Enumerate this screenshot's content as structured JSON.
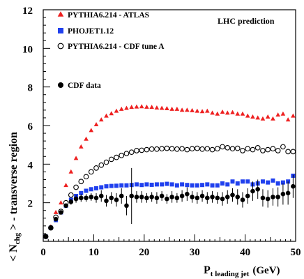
{
  "chart_data": {
    "type": "scatter",
    "title": "",
    "annotation": "LHC prediction",
    "xlabel": {
      "main": "P",
      "sub": "t leading jet",
      "unit": "(GeV)"
    },
    "ylabel": {
      "lead": "< N",
      "sub": "chg",
      "trail": " > - transverse region"
    },
    "xlim": [
      0,
      50
    ],
    "ylim": [
      0,
      12
    ],
    "xticks": [
      "0",
      "10",
      "20",
      "30",
      "40",
      "50"
    ],
    "yticks": [
      "2",
      "4",
      "6",
      "8",
      "10",
      "12"
    ],
    "grid": false,
    "legend_position": "top-left",
    "series": [
      {
        "name": "PYTHIA6.214 - ATLAS",
        "marker": "triangle",
        "color": "#ee2020",
        "x": [
          0.5,
          1.5,
          2.5,
          3.5,
          4.5,
          5.5,
          6.5,
          7.5,
          8.5,
          9.5,
          10.5,
          11.5,
          12.5,
          13.5,
          14.5,
          15.5,
          16.5,
          17.5,
          18.5,
          19.5,
          20.5,
          21.5,
          22.5,
          23.5,
          24.5,
          25.5,
          26.5,
          27.5,
          28.5,
          29.5,
          30.5,
          31.5,
          32.5,
          33.5,
          34.5,
          35.5,
          36.5,
          37.5,
          38.5,
          39.5,
          40.5,
          41.5,
          42.5,
          43.5,
          44.5,
          45.5,
          46.5,
          47.5,
          48.5,
          49.5
        ],
        "y": [
          0.25,
          0.75,
          1.5,
          2.0,
          2.9,
          3.6,
          4.3,
          4.9,
          5.3,
          5.75,
          6.05,
          6.3,
          6.5,
          6.62,
          6.75,
          6.85,
          6.9,
          6.95,
          6.97,
          6.98,
          6.96,
          6.95,
          6.92,
          6.9,
          6.88,
          6.85,
          6.85,
          6.8,
          6.8,
          6.78,
          6.75,
          6.73,
          6.75,
          6.65,
          6.6,
          6.7,
          6.65,
          6.68,
          6.6,
          6.6,
          6.5,
          6.45,
          6.4,
          6.35,
          6.45,
          6.35,
          6.55,
          6.6,
          6.3,
          6.5
        ]
      },
      {
        "name": "PHOJET1.12",
        "marker": "square",
        "color": "#2040ee",
        "x": [
          0.5,
          1.5,
          2.5,
          3.5,
          4.5,
          5.5,
          6.5,
          7.5,
          8.5,
          9.5,
          10.5,
          11.5,
          12.5,
          13.5,
          14.5,
          15.5,
          16.5,
          17.5,
          18.5,
          19.5,
          20.5,
          21.5,
          22.5,
          23.5,
          24.5,
          25.5,
          26.5,
          27.5,
          28.5,
          29.5,
          30.5,
          31.5,
          32.5,
          33.5,
          34.5,
          35.5,
          36.5,
          37.5,
          38.5,
          39.5,
          40.5,
          41.5,
          42.5,
          43.5,
          44.5,
          45.5,
          46.5,
          47.5,
          48.5,
          49.5
        ],
        "y": [
          0.25,
          0.7,
          1.1,
          1.5,
          1.85,
          2.15,
          2.35,
          2.5,
          2.62,
          2.7,
          2.75,
          2.8,
          2.85,
          2.87,
          2.88,
          2.9,
          2.9,
          2.92,
          2.95,
          2.92,
          2.95,
          2.93,
          2.95,
          2.95,
          2.98,
          2.95,
          2.9,
          2.95,
          2.92,
          2.9,
          2.9,
          2.92,
          2.95,
          2.9,
          2.9,
          3.0,
          2.95,
          3.1,
          3.0,
          3.1,
          3.1,
          2.95,
          3.0,
          3.1,
          3.05,
          3.15,
          3.0,
          3.05,
          3.1,
          3.4
        ]
      },
      {
        "name": "PYTHIA6.214 - CDF tune A",
        "marker": "circle-open",
        "color": "#000000",
        "x": [
          0.5,
          1.5,
          2.5,
          3.5,
          4.5,
          5.5,
          6.5,
          7.5,
          8.5,
          9.5,
          10.5,
          11.5,
          12.5,
          13.5,
          14.5,
          15.5,
          16.5,
          17.5,
          18.5,
          19.5,
          20.5,
          21.5,
          22.5,
          23.5,
          24.5,
          25.5,
          26.5,
          27.5,
          28.5,
          29.5,
          30.5,
          31.5,
          32.5,
          33.5,
          34.5,
          35.5,
          36.5,
          37.5,
          38.5,
          39.5,
          40.5,
          41.5,
          42.5,
          43.5,
          44.5,
          45.5,
          46.5,
          47.5,
          48.5,
          49.5
        ],
        "y": [
          0.25,
          0.7,
          1.25,
          1.55,
          2.0,
          2.4,
          2.8,
          3.1,
          3.35,
          3.6,
          3.8,
          3.95,
          4.1,
          4.25,
          4.35,
          4.45,
          4.55,
          4.62,
          4.7,
          4.72,
          4.75,
          4.78,
          4.78,
          4.8,
          4.82,
          4.8,
          4.78,
          4.8,
          4.75,
          4.8,
          4.82,
          4.78,
          4.8,
          4.75,
          4.8,
          4.9,
          4.85,
          4.8,
          4.82,
          4.7,
          4.8,
          4.75,
          4.85,
          4.7,
          4.75,
          4.8,
          4.7,
          4.9,
          4.65,
          4.65
        ]
      },
      {
        "name": "CDF data",
        "marker": "circle-filled",
        "color": "#000000",
        "x": [
          0.5,
          1.5,
          2.5,
          3.5,
          4.5,
          5.5,
          6.5,
          7.5,
          8.5,
          9.5,
          10.5,
          11.5,
          12.5,
          13.5,
          14.5,
          15.5,
          16.5,
          17.5,
          18.5,
          19.5,
          20.5,
          21.5,
          22.5,
          23.5,
          24.5,
          25.5,
          26.5,
          27.5,
          28.5,
          29.5,
          30.5,
          31.5,
          32.5,
          33.5,
          34.5,
          35.5,
          36.5,
          37.5,
          38.5,
          39.5,
          40.5,
          41.5,
          42.5,
          43.5,
          44.5,
          45.5,
          46.5,
          47.5,
          48.5,
          49.5
        ],
        "y": [
          0.25,
          0.7,
          1.15,
          1.5,
          1.85,
          2.05,
          2.2,
          2.25,
          2.25,
          2.3,
          2.25,
          2.35,
          2.1,
          2.25,
          2.15,
          2.35,
          1.85,
          2.35,
          2.3,
          2.3,
          2.25,
          2.3,
          2.25,
          2.35,
          2.2,
          2.3,
          2.25,
          2.35,
          2.45,
          2.3,
          2.25,
          2.35,
          2.25,
          2.3,
          2.25,
          2.2,
          2.3,
          2.4,
          2.3,
          2.15,
          2.35,
          2.6,
          2.7,
          2.25,
          2.2,
          2.3,
          2.3,
          2.45,
          2.5,
          2.85
        ],
        "err": [
          0.03,
          0.05,
          0.08,
          0.1,
          0.12,
          0.15,
          0.2,
          0.2,
          0.2,
          0.2,
          0.25,
          0.3,
          0.3,
          0.3,
          0.35,
          0.4,
          0.5,
          1.45,
          0.3,
          0.3,
          0.25,
          0.25,
          0.3,
          0.25,
          0.25,
          0.3,
          0.25,
          0.3,
          0.35,
          0.3,
          0.3,
          0.3,
          0.3,
          0.3,
          0.3,
          0.35,
          0.35,
          0.35,
          0.4,
          0.4,
          0.4,
          0.5,
          0.5,
          0.45,
          0.45,
          0.45,
          0.5,
          0.55,
          0.6,
          0.6
        ]
      }
    ]
  }
}
